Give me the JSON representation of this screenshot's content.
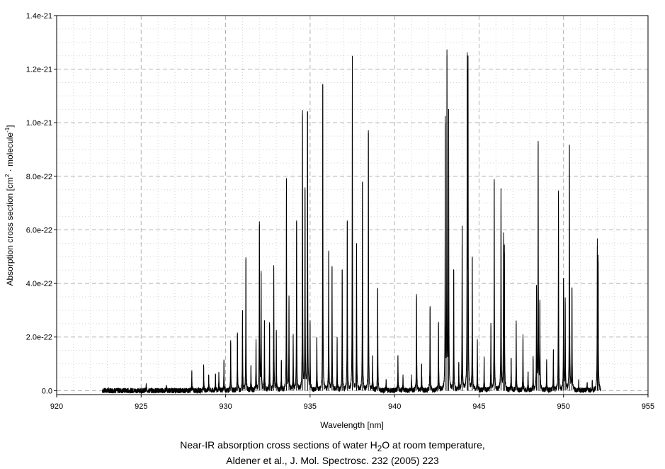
{
  "chart_data": {
    "type": "line",
    "xlabel": "Wavelength [nm]",
    "ylabel_parts": [
      "Absorption cross section [cm",
      "2",
      " · molecule",
      "-1",
      "]"
    ],
    "xlim": [
      920,
      955
    ],
    "ylim": [
      -1.5e-23,
      1.4e-21
    ],
    "x_ticks": [
      920,
      925,
      930,
      935,
      940,
      945,
      950,
      955
    ],
    "x_tick_labels": [
      "920",
      "925",
      "930",
      "935",
      "940",
      "945",
      "950",
      "955"
    ],
    "y_ticks": [
      0,
      2e-22,
      4e-22,
      6e-22,
      8e-22,
      1e-21,
      1.2e-21,
      1.4e-21
    ],
    "y_tick_labels": [
      "0.0",
      "2.0e-22",
      "4.0e-22",
      "6.0e-22",
      "8.0e-22",
      "1.0e-21",
      "1.2e-21",
      "1.4e-21"
    ],
    "grid": true,
    "legend": "none",
    "line_color": "#000000",
    "range": [
      922.7,
      952.2
    ],
    "baseline_noise": 1e-23,
    "peaks": [
      {
        "x": 925.3,
        "y": 2e-23
      },
      {
        "x": 926.5,
        "y": 2e-23
      },
      {
        "x": 928.0,
        "y": 7e-23
      },
      {
        "x": 928.7,
        "y": 9e-23
      },
      {
        "x": 929.0,
        "y": 6e-23
      },
      {
        "x": 929.4,
        "y": 6e-23
      },
      {
        "x": 929.6,
        "y": 7e-23
      },
      {
        "x": 929.9,
        "y": 1.1e-22
      },
      {
        "x": 930.3,
        "y": 1.8e-22
      },
      {
        "x": 930.7,
        "y": 2.1e-22
      },
      {
        "x": 931.0,
        "y": 3e-22
      },
      {
        "x": 931.2,
        "y": 4.9e-22
      },
      {
        "x": 931.5,
        "y": 9e-23
      },
      {
        "x": 931.8,
        "y": 1.9e-22
      },
      {
        "x": 932.0,
        "y": 6.2e-22
      },
      {
        "x": 932.1,
        "y": 4.4e-22
      },
      {
        "x": 932.3,
        "y": 2.6e-22
      },
      {
        "x": 932.6,
        "y": 2.5e-22
      },
      {
        "x": 932.85,
        "y": 4.6e-22
      },
      {
        "x": 933.0,
        "y": 2.2e-22
      },
      {
        "x": 933.3,
        "y": 1.1e-22
      },
      {
        "x": 933.6,
        "y": 7.9e-22
      },
      {
        "x": 933.75,
        "y": 3.5e-22
      },
      {
        "x": 934.0,
        "y": 2.1e-22
      },
      {
        "x": 934.2,
        "y": 6.35e-22
      },
      {
        "x": 934.55,
        "y": 1.03e-21
      },
      {
        "x": 934.7,
        "y": 7.5e-22
      },
      {
        "x": 934.85,
        "y": 1.04e-21
      },
      {
        "x": 935.0,
        "y": 2.5e-22
      },
      {
        "x": 935.4,
        "y": 2e-22
      },
      {
        "x": 935.75,
        "y": 1.14e-21
      },
      {
        "x": 936.1,
        "y": 5.15e-22
      },
      {
        "x": 936.3,
        "y": 4.6e-22
      },
      {
        "x": 936.6,
        "y": 2e-22
      },
      {
        "x": 936.9,
        "y": 4.5e-22
      },
      {
        "x": 937.2,
        "y": 6.3e-22
      },
      {
        "x": 937.5,
        "y": 1.24e-21
      },
      {
        "x": 937.75,
        "y": 5.5e-22
      },
      {
        "x": 938.1,
        "y": 7.8e-22
      },
      {
        "x": 938.45,
        "y": 9.6e-22
      },
      {
        "x": 938.7,
        "y": 1.3e-22
      },
      {
        "x": 939.0,
        "y": 3.8e-22
      },
      {
        "x": 939.5,
        "y": 4e-23
      },
      {
        "x": 940.2,
        "y": 1.3e-22
      },
      {
        "x": 940.5,
        "y": 6e-23
      },
      {
        "x": 941.0,
        "y": 6e-23
      },
      {
        "x": 941.3,
        "y": 3.6e-22
      },
      {
        "x": 941.6,
        "y": 1e-22
      },
      {
        "x": 942.1,
        "y": 3.15e-22
      },
      {
        "x": 942.6,
        "y": 2.5e-22
      },
      {
        "x": 943.0,
        "y": 1e-21
      },
      {
        "x": 943.1,
        "y": 1.25e-21
      },
      {
        "x": 943.2,
        "y": 1.03e-21
      },
      {
        "x": 943.5,
        "y": 4.5e-22
      },
      {
        "x": 943.8,
        "y": 1e-22
      },
      {
        "x": 944.0,
        "y": 6.15e-22
      },
      {
        "x": 944.3,
        "y": 1.2e-21
      },
      {
        "x": 944.35,
        "y": 1.18e-21
      },
      {
        "x": 944.6,
        "y": 5e-22
      },
      {
        "x": 944.9,
        "y": 1.8e-22
      },
      {
        "x": 945.3,
        "y": 1.2e-22
      },
      {
        "x": 945.7,
        "y": 2.4e-22
      },
      {
        "x": 945.9,
        "y": 7.8e-22
      },
      {
        "x": 946.3,
        "y": 7.55e-22
      },
      {
        "x": 946.45,
        "y": 5.65e-22
      },
      {
        "x": 946.5,
        "y": 5.15e-22
      },
      {
        "x": 946.9,
        "y": 1.2e-22
      },
      {
        "x": 947.2,
        "y": 2.5e-22
      },
      {
        "x": 947.6,
        "y": 2.1e-22
      },
      {
        "x": 947.9,
        "y": 7e-23
      },
      {
        "x": 948.2,
        "y": 1.2e-22
      },
      {
        "x": 948.4,
        "y": 3.85e-22
      },
      {
        "x": 948.5,
        "y": 9.2e-22
      },
      {
        "x": 948.6,
        "y": 3.3e-22
      },
      {
        "x": 949.0,
        "y": 1.1e-22
      },
      {
        "x": 949.4,
        "y": 1.5e-22
      },
      {
        "x": 949.7,
        "y": 7.35e-22
      },
      {
        "x": 950.0,
        "y": 4.2e-22
      },
      {
        "x": 950.1,
        "y": 3.3e-22
      },
      {
        "x": 950.35,
        "y": 9.15e-22
      },
      {
        "x": 950.5,
        "y": 3.85e-22
      },
      {
        "x": 950.9,
        "y": 4e-23
      },
      {
        "x": 951.4,
        "y": 3e-23
      },
      {
        "x": 951.7,
        "y": 4e-23
      },
      {
        "x": 952.0,
        "y": 5.4e-22
      },
      {
        "x": 952.05,
        "y": 4.8e-22
      }
    ]
  },
  "caption": {
    "line1_before": "Near-IR absorption cross sections of water H",
    "line1_sub": "2",
    "line1_after": "O at room temperature,",
    "line2": "Aldener et al., J. Mol. Spectrosc. 232 (2005) 223"
  }
}
